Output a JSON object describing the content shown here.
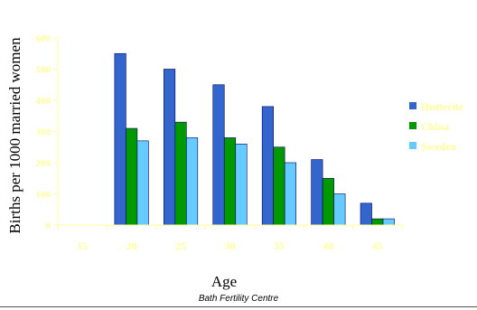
{
  "chart_data": {
    "type": "bar",
    "xlabel": "Age",
    "ylabel": "Births per 1000 married women",
    "categories": [
      "15",
      "20",
      "25",
      "30",
      "35",
      "40",
      "45"
    ],
    "yticks": [
      0,
      100,
      200,
      300,
      400,
      500,
      600
    ],
    "ylim": [
      0,
      600
    ],
    "grid": false,
    "legend_position": "right",
    "series": [
      {
        "name": "Hutterite",
        "color": "#3366cc",
        "values": [
          0,
          550,
          500,
          450,
          380,
          210,
          70
        ]
      },
      {
        "name": "China",
        "color": "#009900",
        "values": [
          0,
          310,
          330,
          280,
          250,
          150,
          20
        ]
      },
      {
        "name": "Sweden",
        "color": "#66ccff",
        "values": [
          0,
          270,
          280,
          260,
          200,
          100,
          20
        ]
      }
    ],
    "colors": {
      "axis": "#ffff99",
      "tick_labels": "#ffff99",
      "legend_text": "#ffff99",
      "title_text": "#000000"
    }
  },
  "footer": {
    "text": "Bath Fertility Centre"
  }
}
